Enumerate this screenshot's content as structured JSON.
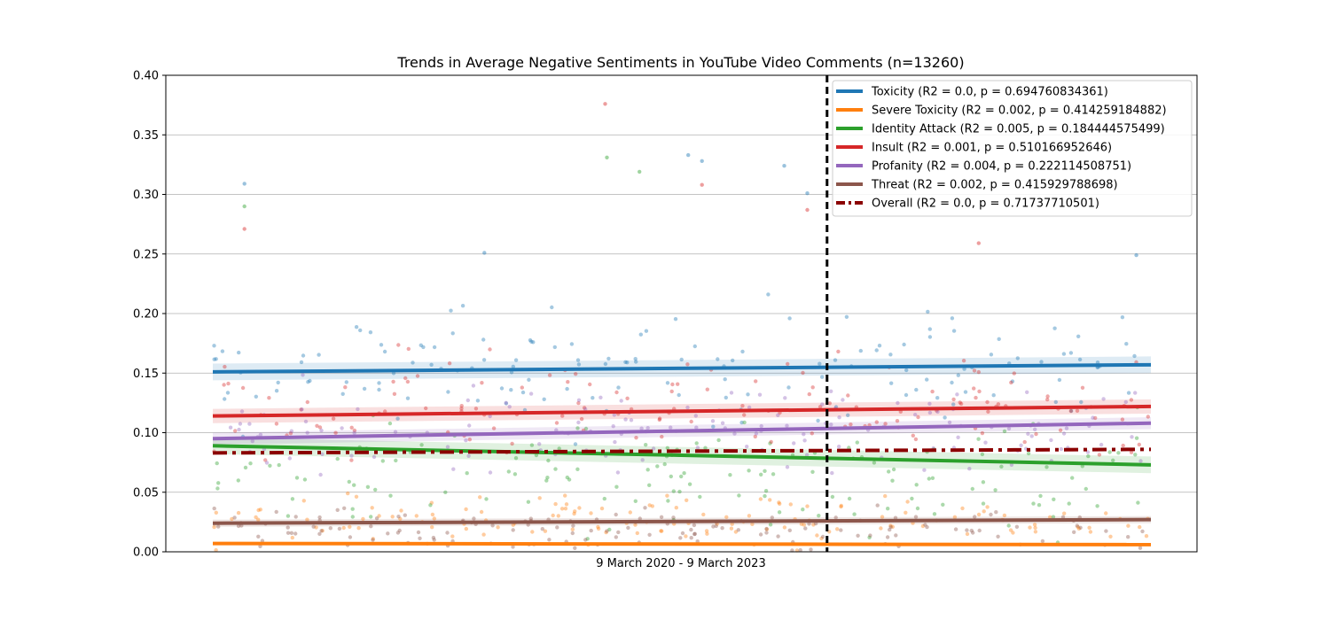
{
  "chart_data": {
    "type": "scatter",
    "title": "Trends in Average Negative Sentiments in YouTube Video Comments (n=13260)",
    "xlabel": "9 March 2020 - 9 March 2023",
    "ylabel": "",
    "ylim": [
      0,
      0.4
    ],
    "y_ticks": [
      "0.00",
      "0.05",
      "0.10",
      "0.15",
      "0.20",
      "0.25",
      "0.30",
      "0.35",
      "0.40"
    ],
    "x_range": [
      "2020-03-09",
      "2023-03-09"
    ],
    "grid": "horizontal",
    "legend_position": "top-right",
    "vertical_marker": {
      "date": "2022-02-24",
      "style": "dashed",
      "color": "#000000"
    },
    "series": [
      {
        "name": "Toxicity",
        "legend": "Toxicity (R2 = 0.0, p = 0.694760834361)",
        "color": "#1f77b4",
        "trend": [
          0.151,
          0.157
        ],
        "band": 0.007,
        "scatter_mean": 0.155,
        "scatter_spread": 0.045
      },
      {
        "name": "Severe Toxicity",
        "legend": "Severe Toxicity (R2 = 0.002, p = 0.414259184882)",
        "color": "#ff7f0e",
        "trend": [
          0.007,
          0.006
        ],
        "band": 0.001,
        "scatter_mean": 0.025,
        "scatter_spread": 0.018
      },
      {
        "name": "Identity Attack",
        "legend": "Identity Attack (R2 = 0.005, p = 0.184444575499)",
        "color": "#2ca02c",
        "trend": [
          0.089,
          0.073
        ],
        "band": 0.007,
        "scatter_mean": 0.065,
        "scatter_spread": 0.045
      },
      {
        "name": "Insult",
        "legend": "Insult (R2 = 0.001, p = 0.510166952646)",
        "color": "#d62728",
        "trend": [
          0.114,
          0.122
        ],
        "band": 0.006,
        "scatter_mean": 0.12,
        "scatter_spread": 0.045
      },
      {
        "name": "Profanity",
        "legend": "Profanity (R2 = 0.004, p = 0.222114508751)",
        "color": "#9467bd",
        "trend": [
          0.095,
          0.108
        ],
        "band": 0.005,
        "scatter_mean": 0.1,
        "scatter_spread": 0.035
      },
      {
        "name": "Threat",
        "legend": "Threat (R2 = 0.002, p = 0.415929788698)",
        "color": "#8c564b",
        "trend": [
          0.024,
          0.027
        ],
        "band": 0.003,
        "scatter_mean": 0.02,
        "scatter_spread": 0.015
      },
      {
        "name": "Overall",
        "legend": "Overall (R2 = 0.0, p = 0.71737710501)",
        "color": "#8b0000",
        "trend": [
          0.083,
          0.086
        ],
        "dashed": true
      }
    ],
    "outliers": [
      {
        "x": "2020-04-15",
        "y": 0.309,
        "color": "#1f77b4"
      },
      {
        "x": "2020-04-15",
        "y": 0.29,
        "color": "#2ca02c"
      },
      {
        "x": "2020-04-15",
        "y": 0.271,
        "color": "#d62728"
      },
      {
        "x": "2021-06-10",
        "y": 0.376,
        "color": "#d62728"
      },
      {
        "x": "2021-06-12",
        "y": 0.331,
        "color": "#2ca02c"
      },
      {
        "x": "2021-07-20",
        "y": 0.319,
        "color": "#2ca02c"
      },
      {
        "x": "2021-09-15",
        "y": 0.333,
        "color": "#1f77b4"
      },
      {
        "x": "2021-10-01",
        "y": 0.328,
        "color": "#1f77b4"
      },
      {
        "x": "2021-10-01",
        "y": 0.308,
        "color": "#d62728"
      },
      {
        "x": "2022-01-05",
        "y": 0.324,
        "color": "#1f77b4"
      },
      {
        "x": "2022-02-01",
        "y": 0.301,
        "color": "#1f77b4"
      },
      {
        "x": "2022-02-01",
        "y": 0.287,
        "color": "#d62728"
      },
      {
        "x": "2021-01-20",
        "y": 0.251,
        "color": "#1f77b4"
      },
      {
        "x": "2022-08-20",
        "y": 0.259,
        "color": "#d62728"
      },
      {
        "x": "2023-02-20",
        "y": 0.249,
        "color": "#1f77b4"
      }
    ]
  }
}
